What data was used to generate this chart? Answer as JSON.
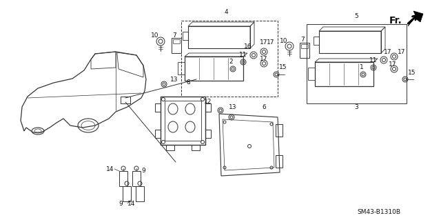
{
  "background_color": "#ffffff",
  "image_code": "SM43-B1310B",
  "fr_label": "Fr.",
  "line_color": "#333333",
  "text_color": "#111111",
  "font_size_labels": 6.5,
  "font_size_code": 6.5
}
